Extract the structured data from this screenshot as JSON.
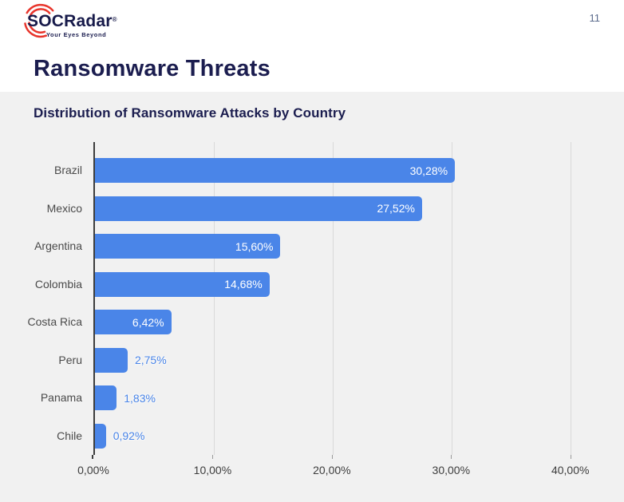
{
  "header": {
    "logo": {
      "text": "SOCRadar",
      "registered_mark": "®",
      "tagline": "Your Eyes Beyond"
    },
    "page_number": "11"
  },
  "page_title": "Ransomware Threats",
  "chart_data": {
    "type": "bar",
    "orientation": "horizontal",
    "title": "Distribution of Ransomware Attacks by Country",
    "categories": [
      "Brazil",
      "Mexico",
      "Argentina",
      "Colombia",
      "Costa Rica",
      "Peru",
      "Panama",
      "Chile"
    ],
    "values": [
      30.28,
      27.52,
      15.6,
      14.68,
      6.42,
      2.75,
      1.83,
      0.92
    ],
    "value_labels": [
      "30,28%",
      "27,52%",
      "15,60%",
      "14,68%",
      "6,42%",
      "2,75%",
      "1,83%",
      "0,92%"
    ],
    "x_ticks": [
      {
        "value": 0,
        "label": "0,00%"
      },
      {
        "value": 10,
        "label": "10,00%"
      },
      {
        "value": 20,
        "label": "20,00%"
      },
      {
        "value": 30,
        "label": "30,00%"
      },
      {
        "value": 40,
        "label": "40,00%"
      }
    ],
    "xlim": [
      0,
      43.7
    ],
    "grid": true,
    "legend_position": "none",
    "bar_color": "#4a85e8",
    "inside_value_label_color": "#ffffff",
    "outside_value_label_color": "#4a85e8",
    "inside_label_min_value": 5
  },
  "colors": {
    "accent_blue": "#4a85e8",
    "navy": "#1b1d4f",
    "logo_red": "#e8352c",
    "panel_background": "#f1f1f1",
    "gridline": "#d9d9d9",
    "axis_line": "#3d3d3d",
    "category_label": "#4a4a4a",
    "page_number": "#5b6b8c"
  }
}
